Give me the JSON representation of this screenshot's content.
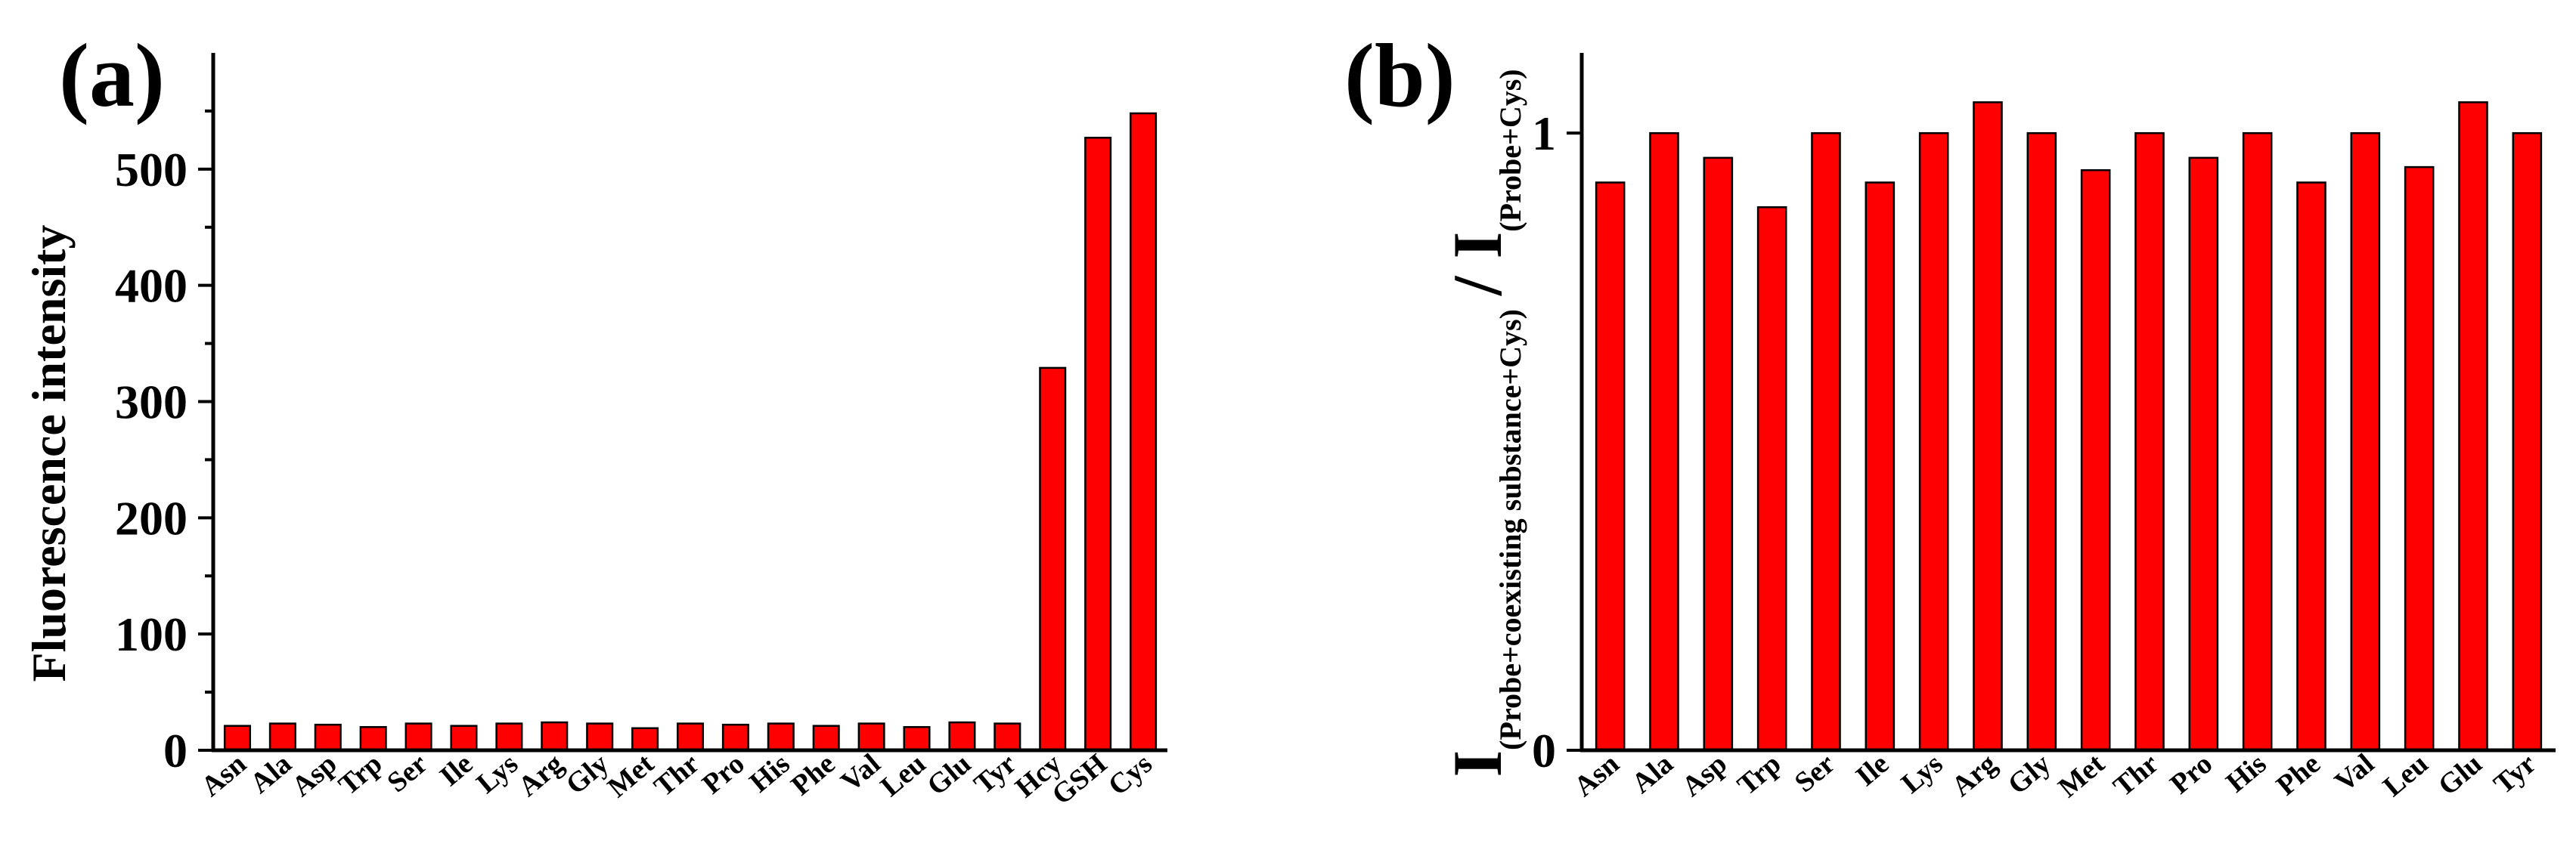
{
  "chart_data": [
    {
      "type": "bar",
      "panel_label": "(a)",
      "ylabel": "Fluorescence intensity",
      "xlabel": "",
      "ylim": [
        0,
        600
      ],
      "yticks": [
        0,
        100,
        200,
        300,
        400,
        500
      ],
      "ytick_labels": [
        "0",
        "100",
        "200",
        "300",
        "400",
        "500"
      ],
      "categories": [
        "Asn",
        "Ala",
        "Asp",
        "Trp",
        "Ser",
        "Ile",
        "Lys",
        "Arg",
        "Gly",
        "Met",
        "Thr",
        "Pro",
        "His",
        "Phe",
        "Val",
        "Leu",
        "Glu",
        "Tyr",
        "Hcy",
        "GSH",
        "Cys"
      ],
      "values": [
        21,
        23,
        22,
        20,
        23,
        21,
        23,
        24,
        23,
        19,
        23,
        22,
        23,
        21,
        23,
        20,
        24,
        23,
        329,
        527,
        548
      ],
      "bar_color": "#ff0000"
    },
    {
      "type": "bar",
      "panel_label": "(b)",
      "ylabel_main": "I",
      "ylabel_sub1": "(Probe+coexisting substance+Cys)",
      "ylabel_slash": "/ I",
      "ylabel_sub2": "(Probe+Cys)",
      "xlabel": "",
      "ylim": [
        0,
        1.13
      ],
      "yticks": [
        0,
        1
      ],
      "ytick_labels": [
        "0",
        "1"
      ],
      "categories": [
        "Asn",
        "Ala",
        "Asp",
        "Trp",
        "Ser",
        "Ile",
        "Lys",
        "Arg",
        "Gly",
        "Met",
        "Thr",
        "Pro",
        "His",
        "Phe",
        "Val",
        "Leu",
        "Glu",
        "Tyr"
      ],
      "values": [
        0.92,
        1.0,
        0.96,
        0.88,
        1.0,
        0.92,
        1.0,
        1.05,
        1.0,
        0.94,
        1.0,
        0.96,
        1.0,
        0.92,
        1.0,
        0.945,
        1.05,
        1.0
      ],
      "bar_color": "#ff0000"
    }
  ]
}
